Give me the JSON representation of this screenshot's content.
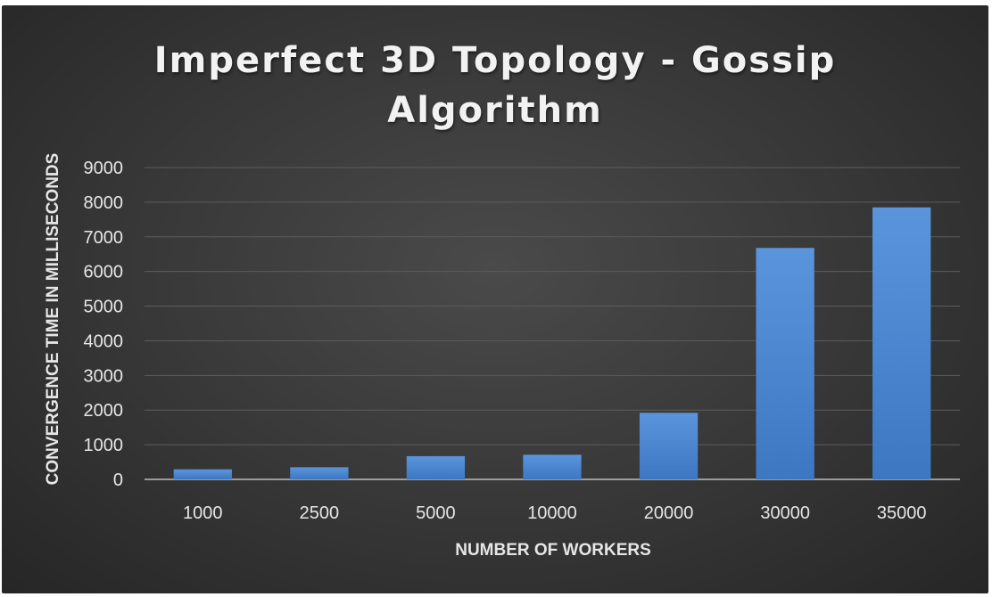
{
  "chart_data": {
    "type": "bar",
    "title": "Imperfect 3D Topology - Gossip Algorithm",
    "title_lines": [
      "Imperfect 3D Topology - Gossip",
      "Algorithm"
    ],
    "xlabel": "NUMBER OF WORKERS",
    "ylabel": "CONVERGENCE TIME IN MILLISECONDS",
    "categories": [
      "1000",
      "2500",
      "5000",
      "10000",
      "20000",
      "30000",
      "35000"
    ],
    "values": [
      290,
      350,
      670,
      710,
      1920,
      6680,
      7850
    ],
    "ylim": [
      0,
      9000
    ],
    "yticks": [
      "0",
      "1000",
      "2000",
      "3000",
      "4000",
      "5000",
      "6000",
      "7000",
      "8000",
      "9000"
    ],
    "grid": true,
    "legend": "none",
    "bar_color": "#4a86d0"
  }
}
